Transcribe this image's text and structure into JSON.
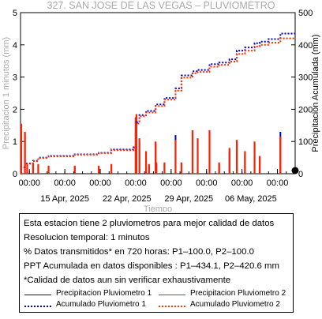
{
  "chart_data": {
    "type": "line",
    "title": "327. SAN JOSE DE LAS VEGAS – PLUVIOMETRO",
    "xlabel": "Tiempo",
    "ylabel_left": "Precipitacion 1 minutos (mm)",
    "ylabel_right": "Precipitacion Acumulada (mm)",
    "x_range_days": [
      "2025-04-10",
      "2025-05-11"
    ],
    "x_major_ticks": [
      {
        "day": "2025-04-11",
        "label": "00:00"
      },
      {
        "day": "2025-04-15",
        "label": "00:00"
      },
      {
        "day": "2025-04-19",
        "label": "00:00"
      },
      {
        "day": "2025-04-23",
        "label": "00:00"
      },
      {
        "day": "2025-04-27",
        "label": "00:00"
      },
      {
        "day": "2025-05-01",
        "label": "00:00"
      },
      {
        "day": "2025-05-05",
        "label": "00:00"
      },
      {
        "day": "2025-05-09",
        "label": "00:00"
      }
    ],
    "x_date_labels": [
      {
        "day": "2025-04-15",
        "label": "15 Apr, 2025"
      },
      {
        "day": "2025-04-22",
        "label": "22 Apr, 2025"
      },
      {
        "day": "2025-04-29",
        "label": "29 Apr, 2025"
      },
      {
        "day": "2025-05-06",
        "label": "06 May, 2025"
      }
    ],
    "y_left": {
      "ylim": [
        0,
        5
      ],
      "ticks": [
        "0",
        "1",
        "2",
        "3",
        "4",
        "5"
      ]
    },
    "y_right": {
      "ylim": [
        0,
        500
      ],
      "ticks": [
        "0",
        "100",
        "200",
        "300",
        "400",
        "500"
      ]
    },
    "grid": false,
    "series": [
      {
        "name": "Precipitacion Pluviometro 1",
        "color": "#0000cc",
        "style": "bars",
        "points": [
          [
            "2025-04-10T02:00",
            1.5
          ],
          [
            "2025-04-10T12:00",
            1.25
          ],
          [
            "2025-04-11T10:00",
            0.25
          ],
          [
            "2025-04-12T00:00",
            0.25
          ],
          [
            "2025-04-13T04:00",
            0.2
          ],
          [
            "2025-04-16T03:00",
            0.2
          ],
          [
            "2025-04-18T20:00",
            0.2
          ],
          [
            "2025-04-20T06:00",
            0.25
          ],
          [
            "2025-04-23T00:00",
            1.7
          ],
          [
            "2025-04-23T02:00",
            1.8
          ],
          [
            "2025-04-23T10:00",
            1.0
          ],
          [
            "2025-04-24T04:00",
            0.6
          ],
          [
            "2025-04-24T12:00",
            0.25
          ],
          [
            "2025-04-25T06:00",
            0.95
          ],
          [
            "2025-04-25T08:00",
            0.3
          ],
          [
            "2025-04-26T06:00",
            0.3
          ],
          [
            "2025-04-27T12:00",
            1.2
          ],
          [
            "2025-04-28T04:00",
            0.3
          ],
          [
            "2025-04-29T10:00",
            1.3
          ],
          [
            "2025-04-30T00:00",
            1.0
          ],
          [
            "2025-05-01T08:00",
            1.3
          ],
          [
            "2025-05-02T10:00",
            0.3
          ],
          [
            "2025-05-03T14:00",
            0.7
          ],
          [
            "2025-05-04T10:00",
            1.0
          ],
          [
            "2025-05-05T08:00",
            0.6
          ],
          [
            "2025-05-06T10:00",
            0.9
          ],
          [
            "2025-05-07T00:00",
            0.5
          ],
          [
            "2025-05-09T08:00",
            1.3
          ]
        ]
      },
      {
        "name": "Precipitacion Pluviometro 2",
        "color": "#ff2200",
        "style": "bars",
        "points": [
          [
            "2025-04-10T02:00",
            1.55
          ],
          [
            "2025-04-10T12:00",
            1.3
          ],
          [
            "2025-04-10T18:00",
            0.3
          ],
          [
            "2025-04-11T10:00",
            0.3
          ],
          [
            "2025-04-12T00:00",
            0.3
          ],
          [
            "2025-04-13T04:00",
            0.25
          ],
          [
            "2025-04-16T03:00",
            0.25
          ],
          [
            "2025-04-18T20:00",
            0.25
          ],
          [
            "2025-04-20T06:00",
            0.3
          ],
          [
            "2025-04-23T00:00",
            1.75
          ],
          [
            "2025-04-23T02:00",
            1.85
          ],
          [
            "2025-04-23T10:00",
            1.1
          ],
          [
            "2025-04-24T04:00",
            0.7
          ],
          [
            "2025-04-24T12:00",
            0.3
          ],
          [
            "2025-04-25T06:00",
            1.0
          ],
          [
            "2025-04-25T08:00",
            0.35
          ],
          [
            "2025-04-26T06:00",
            0.35
          ],
          [
            "2025-04-27T12:00",
            1.05
          ],
          [
            "2025-04-28T04:00",
            0.35
          ],
          [
            "2025-04-29T10:00",
            1.35
          ],
          [
            "2025-04-30T00:00",
            1.1
          ],
          [
            "2025-05-01T08:00",
            1.35
          ],
          [
            "2025-05-02T10:00",
            0.35
          ],
          [
            "2025-05-03T14:00",
            0.8
          ],
          [
            "2025-05-04T10:00",
            1.05
          ],
          [
            "2025-05-05T08:00",
            0.7
          ],
          [
            "2025-05-06T10:00",
            1.0
          ],
          [
            "2025-05-07T00:00",
            0.55
          ],
          [
            "2025-05-09T08:00",
            1.15
          ]
        ]
      },
      {
        "name": "Acumulado Pluviometro 1",
        "color": "#0000cc",
        "style": "dotted",
        "points": [
          [
            "2025-04-10T00:00",
            0
          ],
          [
            "2025-04-10T02:00",
            20
          ],
          [
            "2025-04-10T12:00",
            32
          ],
          [
            "2025-04-11T10:00",
            40
          ],
          [
            "2025-04-12T00:00",
            50
          ],
          [
            "2025-04-13T04:00",
            55
          ],
          [
            "2025-04-16T03:00",
            60
          ],
          [
            "2025-04-18T20:00",
            65
          ],
          [
            "2025-04-20T06:00",
            75
          ],
          [
            "2025-04-22T18:00",
            82
          ],
          [
            "2025-04-23T00:00",
            130
          ],
          [
            "2025-04-23T02:00",
            160
          ],
          [
            "2025-04-23T10:00",
            182
          ],
          [
            "2025-04-24T04:00",
            195
          ],
          [
            "2025-04-25T06:00",
            215
          ],
          [
            "2025-04-26T06:00",
            235
          ],
          [
            "2025-04-27T12:00",
            265
          ],
          [
            "2025-04-28T04:00",
            305
          ],
          [
            "2025-04-29T10:00",
            318
          ],
          [
            "2025-04-30T00:00",
            322
          ],
          [
            "2025-05-01T08:00",
            340
          ],
          [
            "2025-05-02T10:00",
            345
          ],
          [
            "2025-05-03T14:00",
            355
          ],
          [
            "2025-05-04T10:00",
            382
          ],
          [
            "2025-05-05T08:00",
            392
          ],
          [
            "2025-05-06T10:00",
            405
          ],
          [
            "2025-05-07T00:00",
            410
          ],
          [
            "2025-05-08T00:00",
            418
          ],
          [
            "2025-05-09T08:00",
            435
          ],
          [
            "2025-05-11T00:00",
            435
          ]
        ]
      },
      {
        "name": "Acumulado Pluviometro 2",
        "color": "#ff3300",
        "style": "dotted",
        "points": [
          [
            "2025-04-10T00:00",
            0
          ],
          [
            "2025-04-10T02:00",
            19
          ],
          [
            "2025-04-10T12:00",
            31
          ],
          [
            "2025-04-11T10:00",
            39
          ],
          [
            "2025-04-12T00:00",
            49
          ],
          [
            "2025-04-13T04:00",
            54
          ],
          [
            "2025-04-16T03:00",
            59
          ],
          [
            "2025-04-18T20:00",
            64
          ],
          [
            "2025-04-20T06:00",
            73
          ],
          [
            "2025-04-22T18:00",
            80
          ],
          [
            "2025-04-23T00:00",
            126
          ],
          [
            "2025-04-23T02:00",
            156
          ],
          [
            "2025-04-23T10:00",
            178
          ],
          [
            "2025-04-24T04:00",
            190
          ],
          [
            "2025-04-25T06:00",
            210
          ],
          [
            "2025-04-26T06:00",
            230
          ],
          [
            "2025-04-27T12:00",
            258
          ],
          [
            "2025-04-28T04:00",
            298
          ],
          [
            "2025-04-29T10:00",
            312
          ],
          [
            "2025-04-30T00:00",
            316
          ],
          [
            "2025-05-01T08:00",
            332
          ],
          [
            "2025-05-02T10:00",
            338
          ],
          [
            "2025-05-03T14:00",
            348
          ],
          [
            "2025-05-04T10:00",
            372
          ],
          [
            "2025-05-05T08:00",
            382
          ],
          [
            "2025-05-06T10:00",
            395
          ],
          [
            "2025-05-07T00:00",
            400
          ],
          [
            "2025-05-08T00:00",
            407
          ],
          [
            "2025-05-09T08:00",
            420
          ],
          [
            "2025-05-11T00:00",
            421
          ]
        ]
      }
    ],
    "annotations": [
      {
        "type": "marker",
        "day": "2025-05-11",
        "value": 0,
        "shape": "filled-circle",
        "color": "#000000"
      }
    ]
  },
  "info": {
    "lines": [
      "Esta estacion tiene 2 pluviometros para mejor calidad de datos",
      "Resolucion temporal: 1 minutos",
      "% Datos transmitidos* en 720 horas: P1–100.0, P2–100.0",
      "PPT Acumulada en datos disponibles : P1–434.1, P2–420.6 mm",
      "*Calidad de datos aun sin verificar exhaustivamente"
    ],
    "legend": [
      {
        "label": "Precipitacion Pluviometro 1",
        "color": "#0000cc",
        "style": "solid"
      },
      {
        "label": "Precipitacion Pluviometro 2",
        "color": "#ff2200",
        "style": "solid"
      },
      {
        "label": "Acumulado Pluviometro 1",
        "color": "#0000cc",
        "style": "dotted"
      },
      {
        "label": "Acumulado Pluviometro 2",
        "color": "#ff3300",
        "style": "dotted"
      }
    ]
  }
}
